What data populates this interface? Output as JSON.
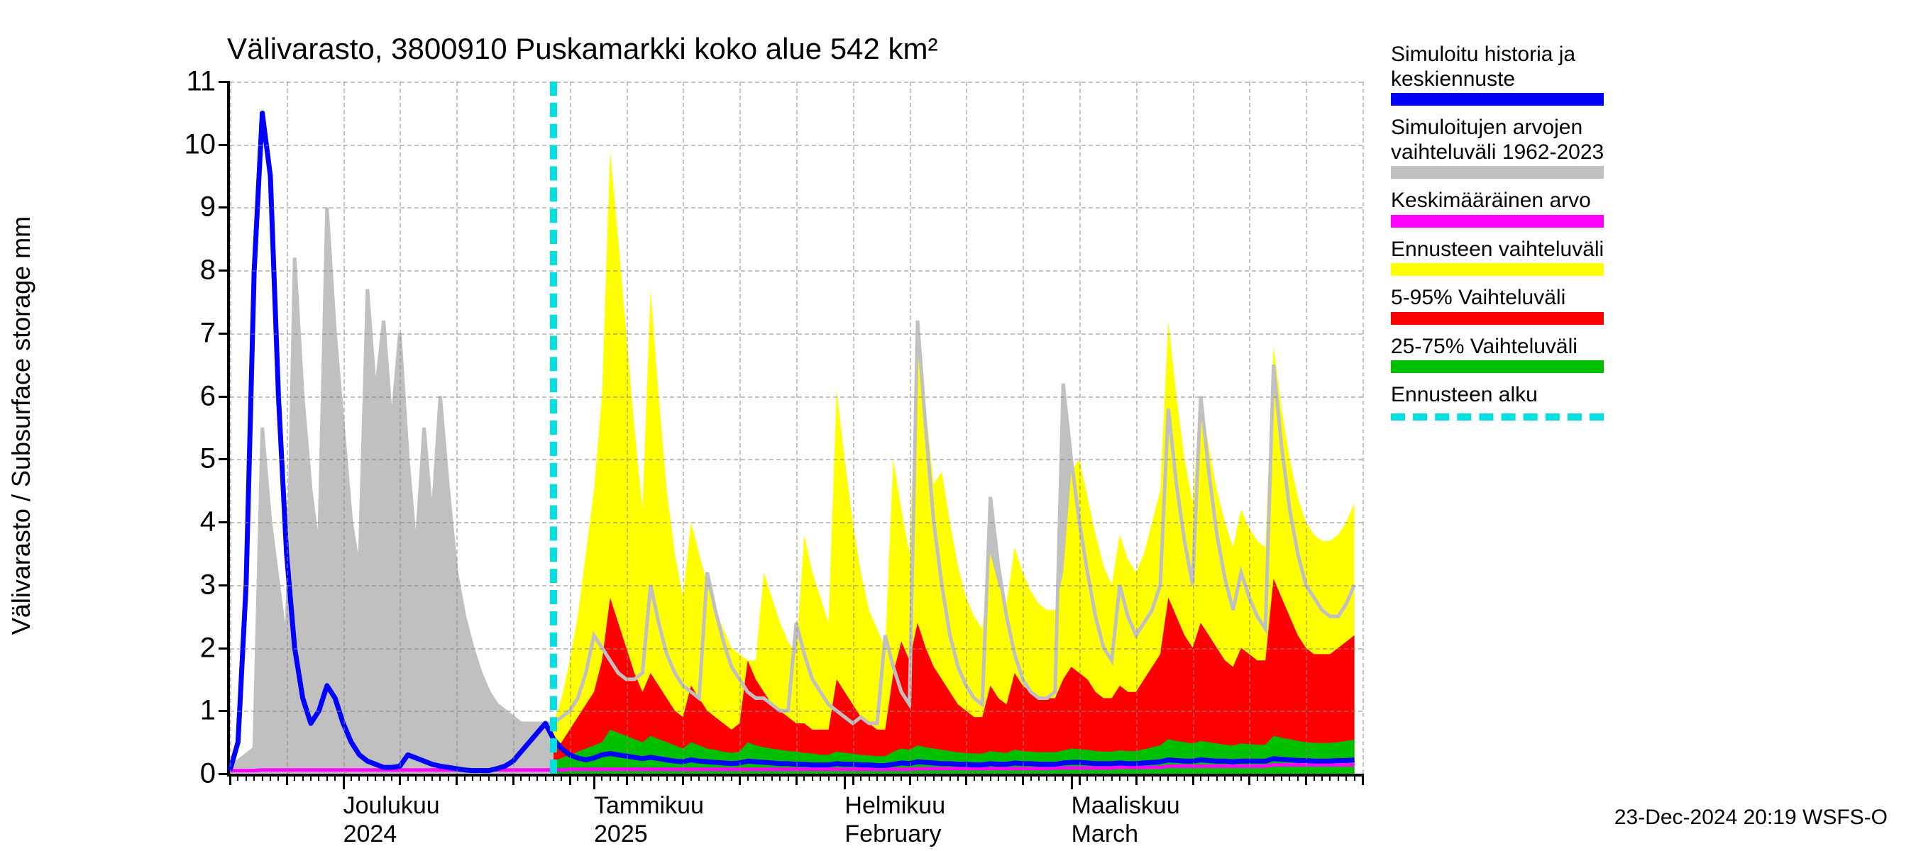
{
  "chart": {
    "title": "Välivarasto, 3800910 Puskamarkki koko alue 542 km²",
    "y_axis_label": "Välivarasto / Subsurface storage  mm",
    "footer": "23-Dec-2024 20:19 WSFS-O",
    "background_color": "#ffffff",
    "axis_color": "#000000",
    "grid_color": "#888888",
    "title_fontsize": 42,
    "label_fontsize": 36,
    "tick_fontsize": 40,
    "xlabel_fontsize": 34,
    "legend_fontsize": 30,
    "y_axis": {
      "min": 0,
      "max": 11,
      "ticks": [
        0,
        1,
        2,
        3,
        4,
        5,
        6,
        7,
        8,
        9,
        10,
        11
      ]
    },
    "x_axis": {
      "n": 140,
      "forecast_start_index": 40,
      "minor_tick_every": 1,
      "major_months": [
        {
          "index": 14,
          "top": "Joulukuu",
          "bottom": "2024"
        },
        {
          "index": 45,
          "top": "Tammikuu",
          "bottom": "2025"
        },
        {
          "index": 76,
          "top": "Helmikuu",
          "bottom": "February"
        },
        {
          "index": 104,
          "top": "Maaliskuu",
          "bottom": "March"
        }
      ],
      "week_ticks": [
        0,
        7,
        14,
        21,
        28,
        35,
        42,
        49,
        56,
        63,
        70,
        77,
        84,
        91,
        98,
        105,
        112,
        119,
        126,
        133,
        140
      ]
    },
    "colors": {
      "sim_history": "#0000ff",
      "hist_range": "#c0c0c0",
      "mean": "#ff00ff",
      "forecast_range": "#ffff00",
      "p5_95": "#ff0000",
      "p25_75": "#00c000",
      "forecast_start": "#00e0e0"
    },
    "legend": [
      {
        "text1": "Simuloitu historia ja",
        "text2": "keskiennuste",
        "type": "solid",
        "color": "#0000ff"
      },
      {
        "text1": "Simuloitujen arvojen",
        "text2": "vaihteluväli 1962-2023",
        "type": "solid",
        "color": "#c0c0c0"
      },
      {
        "text1": "Keskimääräinen arvo",
        "text2": null,
        "type": "solid",
        "color": "#ff00ff"
      },
      {
        "text1": "Ennusteen vaihteluväli",
        "text2": null,
        "type": "solid",
        "color": "#ffff00"
      },
      {
        "text1": "5-95% Vaihteluväli",
        "text2": null,
        "type": "solid",
        "color": "#ff0000"
      },
      {
        "text1": "25-75% Vaihteluväli",
        "text2": null,
        "type": "solid",
        "color": "#00c000"
      },
      {
        "text1": "Ennusteen alku",
        "text2": null,
        "type": "dashed",
        "color": "#00e0e0"
      }
    ],
    "series": {
      "hist_range_upper": [
        0.1,
        0.2,
        0.3,
        0.4,
        5.5,
        4.0,
        3.0,
        2.0,
        8.2,
        6.0,
        4.5,
        3.5,
        9.0,
        7.0,
        5.5,
        4.0,
        3.2,
        7.7,
        6.0,
        7.2,
        5.5,
        7.0,
        5.0,
        3.5,
        5.5,
        4.0,
        6.0,
        4.5,
        3.2,
        2.5,
        2.0,
        1.6,
        1.3,
        1.1,
        1.0,
        0.9,
        0.8,
        0.8,
        0.8,
        0.8,
        0.8,
        0.9,
        1.0,
        1.2,
        1.6,
        2.2,
        2.0,
        1.8,
        1.6,
        1.5,
        1.5,
        1.6,
        3.0,
        2.4,
        1.9,
        1.6,
        1.4,
        1.3,
        1.2,
        3.2,
        2.6,
        2.1,
        1.7,
        1.5,
        1.3,
        1.2,
        1.2,
        1.1,
        1.0,
        1.0,
        2.4,
        1.9,
        1.5,
        1.3,
        1.1,
        1.0,
        0.9,
        0.8,
        0.9,
        0.8,
        0.8,
        2.2,
        1.7,
        1.3,
        1.1,
        7.2,
        5.5,
        4.0,
        3.0,
        2.2,
        1.7,
        1.4,
        1.2,
        1.1,
        4.4,
        3.3,
        2.5,
        1.9,
        1.5,
        1.3,
        1.2,
        1.2,
        1.3,
        6.2,
        5.0,
        4.0,
        3.2,
        2.5,
        2.0,
        1.8,
        3.0,
        2.5,
        2.2,
        2.4,
        2.6,
        3.0,
        5.8,
        4.6,
        3.7,
        3.0,
        6.0,
        4.8,
        3.8,
        3.1,
        2.6,
        3.2,
        2.8,
        2.5,
        2.3,
        6.5,
        5.2,
        4.2,
        3.5,
        3.0,
        2.8,
        2.6,
        2.5,
        2.5,
        2.7,
        3.0
      ],
      "forecast_upper": [
        0.8,
        1.2,
        1.8,
        2.5,
        3.5,
        4.5,
        6.0,
        9.9,
        8.5,
        7.0,
        5.5,
        4.2,
        7.7,
        6.0,
        4.5,
        3.5,
        2.8,
        4.0,
        3.5,
        3.0,
        2.6,
        2.3,
        2.0,
        1.9,
        1.8,
        1.8,
        3.2,
        2.8,
        2.4,
        2.1,
        1.9,
        3.8,
        3.2,
        2.8,
        2.4,
        6.1,
        5.0,
        4.0,
        3.2,
        2.6,
        2.3,
        2.0,
        5.0,
        4.2,
        3.5,
        7.0,
        5.8,
        4.6,
        4.8,
        4.0,
        3.3,
        2.8,
        2.5,
        2.3,
        3.5,
        3.0,
        2.7,
        3.6,
        3.2,
        2.9,
        2.7,
        2.6,
        2.6,
        3.2,
        4.8,
        5.0,
        4.4,
        3.8,
        3.3,
        3.0,
        3.8,
        3.4,
        3.2,
        3.5,
        4.0,
        4.5,
        7.2,
        6.0,
        5.0,
        4.3,
        6.0,
        5.2,
        4.5,
        4.0,
        3.6,
        4.2,
        3.9,
        3.7,
        3.6,
        6.8,
        5.8,
        5.0,
        4.4,
        4.0,
        3.8,
        3.7,
        3.7,
        3.8,
        4.0,
        4.3
      ],
      "p5_95_upper": [
        0.4,
        0.5,
        0.7,
        0.9,
        1.1,
        1.3,
        1.8,
        2.8,
        2.4,
        2.0,
        1.6,
        1.3,
        1.6,
        1.4,
        1.2,
        1.0,
        0.9,
        1.4,
        1.2,
        1.0,
        0.9,
        0.8,
        0.7,
        0.8,
        1.8,
        1.5,
        1.3,
        1.1,
        1.0,
        0.9,
        0.8,
        0.8,
        0.7,
        0.7,
        0.7,
        1.5,
        1.3,
        1.1,
        0.9,
        0.8,
        0.7,
        0.7,
        1.6,
        2.1,
        1.8,
        2.4,
        2.0,
        1.7,
        1.5,
        1.3,
        1.1,
        1.0,
        0.9,
        0.9,
        1.4,
        1.2,
        1.1,
        1.6,
        1.4,
        1.3,
        1.2,
        1.2,
        1.2,
        1.5,
        1.7,
        1.6,
        1.5,
        1.3,
        1.2,
        1.2,
        1.4,
        1.3,
        1.3,
        1.5,
        1.7,
        1.9,
        2.8,
        2.5,
        2.2,
        2.0,
        2.4,
        2.2,
        2.0,
        1.8,
        1.7,
        2.0,
        1.9,
        1.8,
        1.8,
        3.1,
        2.8,
        2.5,
        2.2,
        2.0,
        1.9,
        1.9,
        1.9,
        2.0,
        2.1,
        2.2
      ],
      "p25_75_upper": [
        0.2,
        0.25,
        0.3,
        0.35,
        0.4,
        0.45,
        0.5,
        0.7,
        0.65,
        0.6,
        0.55,
        0.5,
        0.6,
        0.55,
        0.5,
        0.45,
        0.4,
        0.5,
        0.45,
        0.4,
        0.38,
        0.35,
        0.33,
        0.35,
        0.5,
        0.45,
        0.42,
        0.4,
        0.38,
        0.36,
        0.35,
        0.33,
        0.32,
        0.3,
        0.3,
        0.35,
        0.33,
        0.32,
        0.3,
        0.29,
        0.28,
        0.28,
        0.35,
        0.4,
        0.38,
        0.45,
        0.42,
        0.4,
        0.38,
        0.36,
        0.34,
        0.33,
        0.32,
        0.32,
        0.36,
        0.34,
        0.33,
        0.38,
        0.36,
        0.35,
        0.34,
        0.34,
        0.34,
        0.37,
        0.4,
        0.39,
        0.38,
        0.36,
        0.35,
        0.35,
        0.37,
        0.36,
        0.36,
        0.39,
        0.42,
        0.45,
        0.55,
        0.52,
        0.5,
        0.48,
        0.52,
        0.5,
        0.48,
        0.46,
        0.45,
        0.48,
        0.47,
        0.46,
        0.46,
        0.6,
        0.57,
        0.55,
        0.52,
        0.5,
        0.49,
        0.49,
        0.49,
        0.5,
        0.52,
        0.54
      ],
      "mean": [
        0.05,
        0.05,
        0.05,
        0.05,
        0.06,
        0.06,
        0.06,
        0.06,
        0.06,
        0.06,
        0.06,
        0.06,
        0.06,
        0.06,
        0.06,
        0.06,
        0.06,
        0.06,
        0.06,
        0.06,
        0.06,
        0.06,
        0.06,
        0.06,
        0.06,
        0.06,
        0.06,
        0.06,
        0.06,
        0.06,
        0.06,
        0.06,
        0.06,
        0.06,
        0.06,
        0.06,
        0.06,
        0.06,
        0.06,
        0.06,
        0.06,
        0.06,
        0.07,
        0.07,
        0.07,
        0.07,
        0.07,
        0.07,
        0.07,
        0.07,
        0.07,
        0.07,
        0.07,
        0.07,
        0.07,
        0.07,
        0.07,
        0.07,
        0.07,
        0.07,
        0.07,
        0.07,
        0.07,
        0.07,
        0.07,
        0.07,
        0.07,
        0.07,
        0.07,
        0.07,
        0.07,
        0.07,
        0.07,
        0.07,
        0.07,
        0.07,
        0.07,
        0.07,
        0.07,
        0.07,
        0.07,
        0.07,
        0.07,
        0.07,
        0.07,
        0.08,
        0.08,
        0.08,
        0.08,
        0.08,
        0.08,
        0.08,
        0.08,
        0.08,
        0.08,
        0.08,
        0.08,
        0.08,
        0.08,
        0.08,
        0.08,
        0.08,
        0.09,
        0.09,
        0.09,
        0.09,
        0.09,
        0.09,
        0.09,
        0.09,
        0.1,
        0.1,
        0.1,
        0.1,
        0.1,
        0.1,
        0.12,
        0.12,
        0.12,
        0.12,
        0.12,
        0.12,
        0.12,
        0.12,
        0.12,
        0.12,
        0.12,
        0.12,
        0.12,
        0.14,
        0.14,
        0.14,
        0.14,
        0.14,
        0.14,
        0.14,
        0.14,
        0.14,
        0.14,
        0.14
      ],
      "sim_history": [
        0.05,
        0.5,
        3.0,
        8.0,
        10.5,
        9.5,
        6.0,
        3.5,
        2.0,
        1.2,
        0.8,
        1.0,
        1.4,
        1.2,
        0.8,
        0.5,
        0.3,
        0.2,
        0.15,
        0.1,
        0.1,
        0.12,
        0.3,
        0.25,
        0.2,
        0.15,
        0.12,
        0.1,
        0.08,
        0.06,
        0.05,
        0.05,
        0.05,
        0.08,
        0.12,
        0.2,
        0.35,
        0.5,
        0.65,
        0.8,
        0.55,
        0.4,
        0.3,
        0.25,
        0.22,
        0.25,
        0.3,
        0.32,
        0.3,
        0.28,
        0.26,
        0.24,
        0.26,
        0.24,
        0.22,
        0.2,
        0.19,
        0.22,
        0.2,
        0.19,
        0.18,
        0.17,
        0.16,
        0.17,
        0.2,
        0.19,
        0.18,
        0.17,
        0.16,
        0.16,
        0.15,
        0.15,
        0.14,
        0.14,
        0.14,
        0.16,
        0.15,
        0.15,
        0.14,
        0.14,
        0.13,
        0.13,
        0.15,
        0.17,
        0.16,
        0.19,
        0.18,
        0.17,
        0.16,
        0.16,
        0.15,
        0.15,
        0.14,
        0.14,
        0.16,
        0.15,
        0.15,
        0.17,
        0.16,
        0.16,
        0.15,
        0.15,
        0.15,
        0.17,
        0.18,
        0.18,
        0.17,
        0.16,
        0.16,
        0.16,
        0.17,
        0.16,
        0.16,
        0.17,
        0.18,
        0.19,
        0.22,
        0.21,
        0.2,
        0.2,
        0.22,
        0.21,
        0.2,
        0.2,
        0.19,
        0.2,
        0.2,
        0.2,
        0.2,
        0.24,
        0.23,
        0.22,
        0.21,
        0.21,
        0.2,
        0.2,
        0.2,
        0.21,
        0.21,
        0.22
      ]
    }
  }
}
